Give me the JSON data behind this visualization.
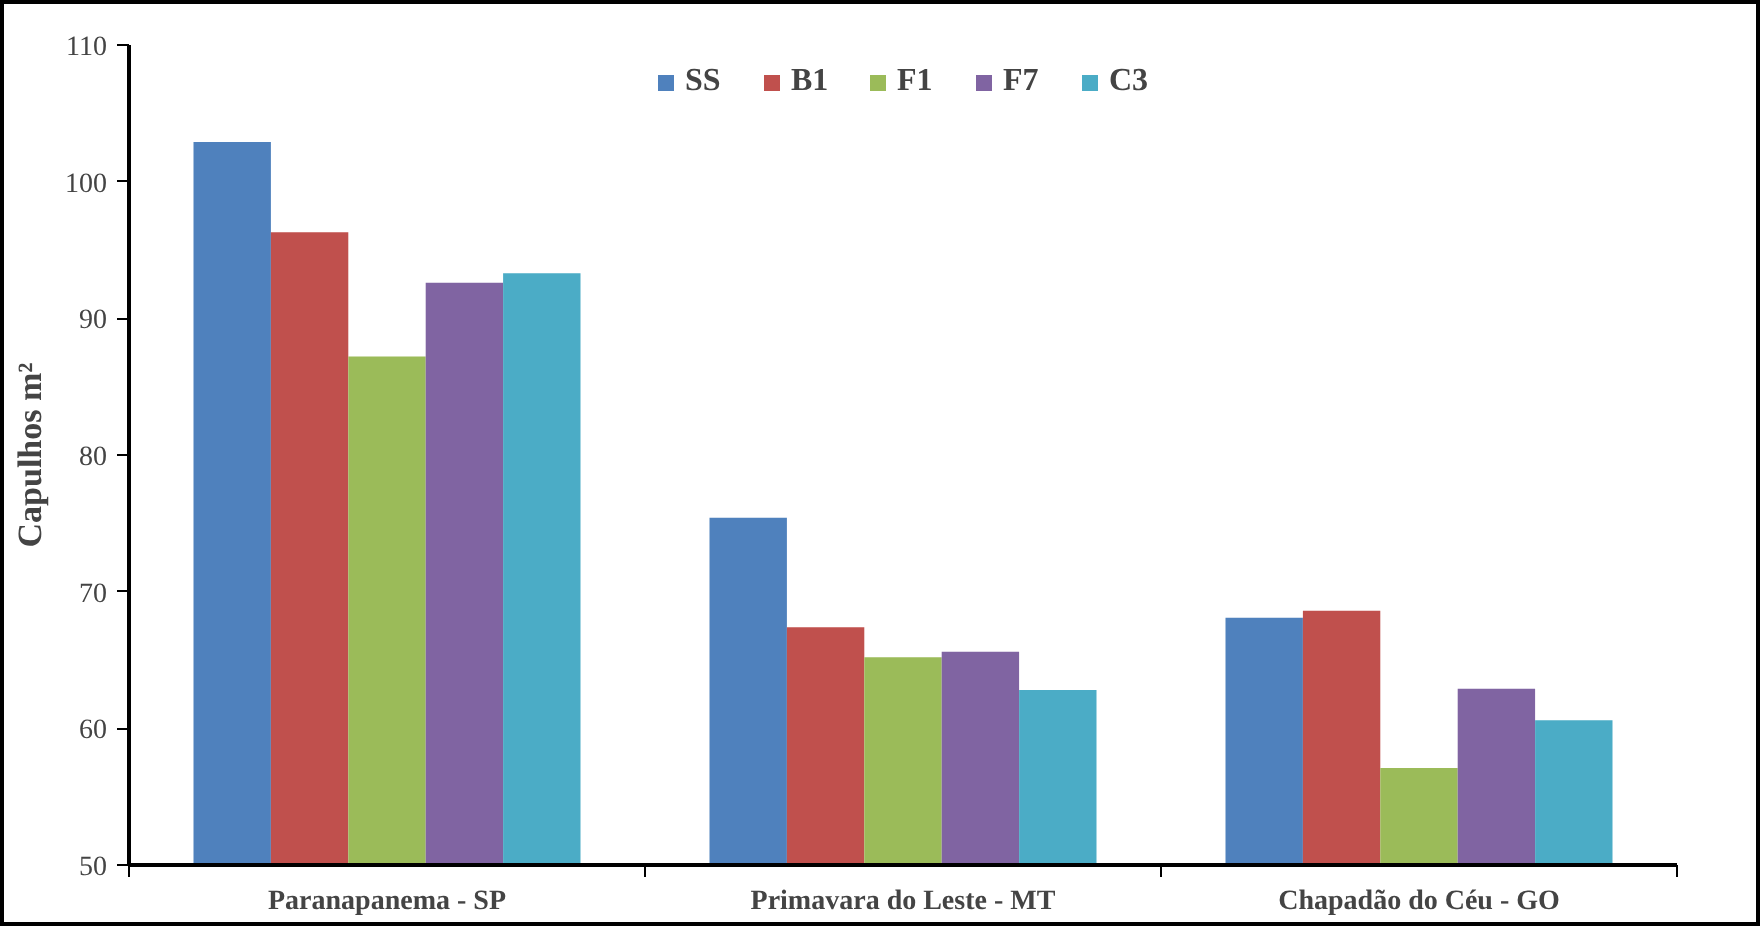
{
  "chart_data": {
    "type": "bar",
    "ylabel": "Capulhos m²",
    "categories": [
      "Paranapanema - SP",
      "Primavara do Leste - MT",
      "Chapadão do Céu - GO"
    ],
    "series": [
      {
        "name": "SS",
        "color": "#4f81bd",
        "values": [
          102.9,
          75.4,
          68.1
        ]
      },
      {
        "name": "B1",
        "color": "#c0504d",
        "values": [
          96.3,
          67.4,
          68.6
        ]
      },
      {
        "name": "F1",
        "color": "#9bbb59",
        "values": [
          87.2,
          65.2,
          57.1
        ]
      },
      {
        "name": "F7",
        "color": "#8064a2",
        "values": [
          92.6,
          65.6,
          62.9
        ]
      },
      {
        "name": "C3",
        "color": "#4bacc6",
        "values": [
          93.3,
          62.8,
          60.6
        ]
      }
    ],
    "ylim": [
      50,
      110
    ],
    "yticks": [
      50,
      60,
      70,
      80,
      90,
      100,
      110
    ],
    "grid": false,
    "legend": "top"
  }
}
